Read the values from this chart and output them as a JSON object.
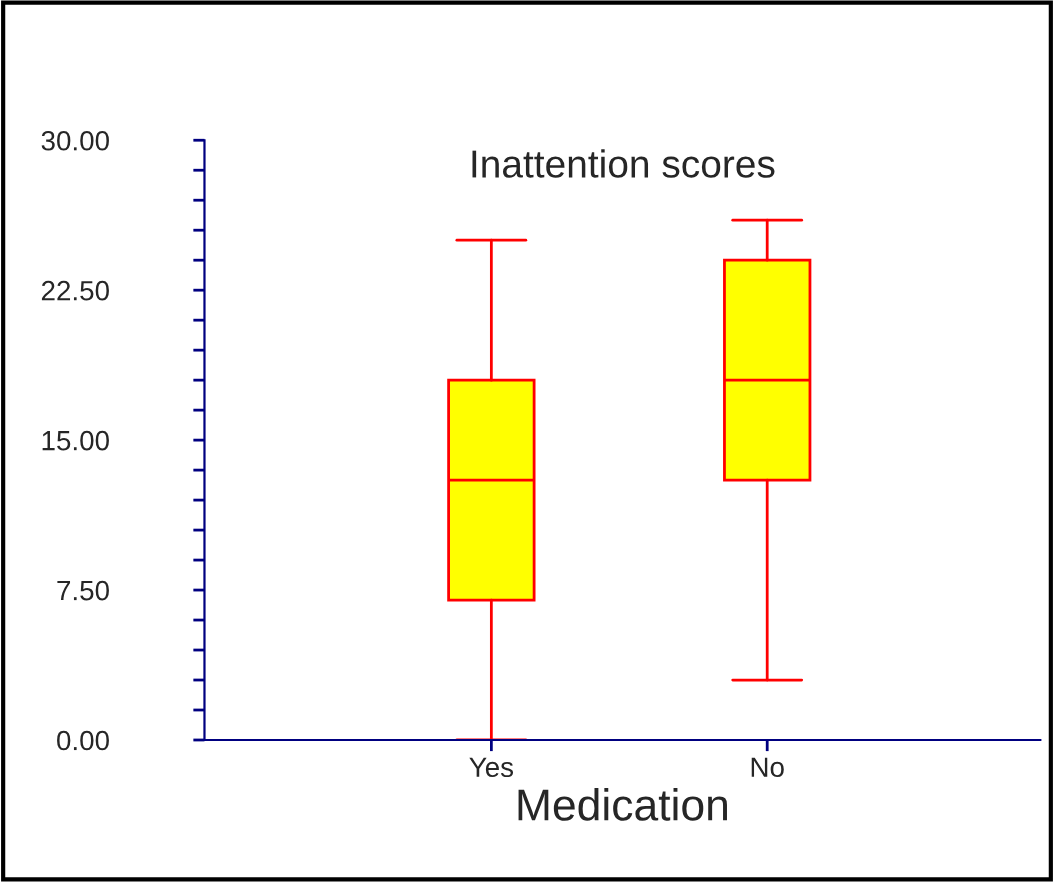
{
  "chart_data": {
    "type": "box",
    "title": "Inattention scores",
    "xlabel": "Medication",
    "categories": [
      "Yes",
      "No"
    ],
    "series": [
      {
        "color": "#ffff00",
        "boxes": [
          {
            "low": 0,
            "q1": 7,
            "median": 13,
            "q3": 18,
            "high": 25
          },
          {
            "low": 3,
            "q1": 13,
            "median": 18,
            "q3": 24,
            "high": 26
          }
        ]
      }
    ],
    "ylim": [
      0,
      30
    ],
    "yticks": [
      {
        "value": 0,
        "label": "0.00"
      },
      {
        "value": 1.5,
        "label": null
      },
      {
        "value": 3,
        "label": null
      },
      {
        "value": 4.5,
        "label": null
      },
      {
        "value": 6,
        "label": null
      },
      {
        "value": 7.5,
        "label": "7.50"
      },
      {
        "value": 9,
        "label": null
      },
      {
        "value": 10.5,
        "label": null
      },
      {
        "value": 12,
        "label": null
      },
      {
        "value": 13.5,
        "label": null
      },
      {
        "value": 15,
        "label": "15.00"
      },
      {
        "value": 16.5,
        "label": null
      },
      {
        "value": 18,
        "label": null
      },
      {
        "value": 19.5,
        "label": null
      },
      {
        "value": 21,
        "label": null
      },
      {
        "value": 22.5,
        "label": "22.50"
      },
      {
        "value": 24,
        "label": null
      },
      {
        "value": 25.5,
        "label": null
      },
      {
        "value": 27,
        "label": null
      },
      {
        "value": 28.5,
        "label": null
      },
      {
        "value": 30,
        "label": "30.00"
      }
    ]
  }
}
